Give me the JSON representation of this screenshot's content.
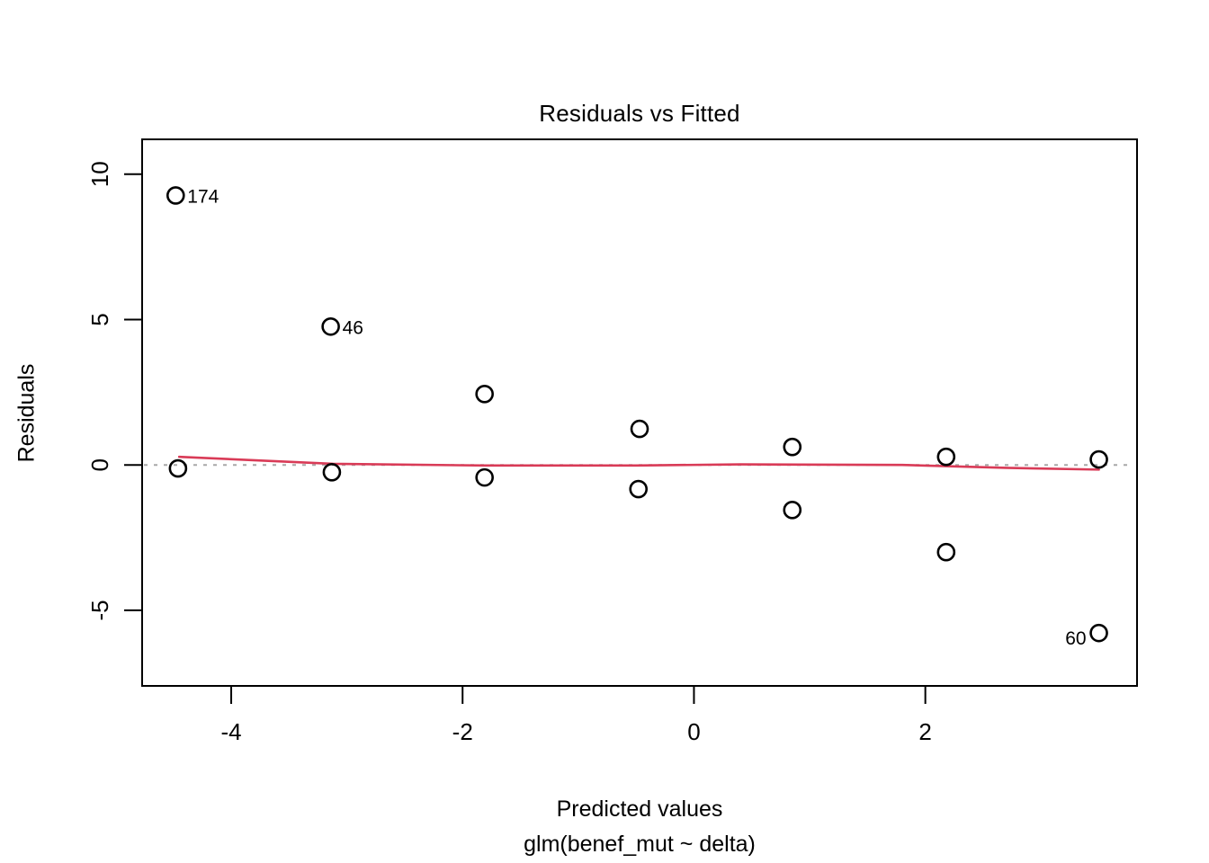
{
  "figure": {
    "title": "Residuals vs Fitted",
    "xlabel": "Predicted values",
    "model_formula": "glm(benef_mut ~ delta)",
    "ylabel": "Residuals"
  },
  "chart_data": {
    "type": "scatter",
    "title": "Residuals vs Fitted",
    "xlabel": "Predicted values",
    "xlabel_line2": "glm(benef_mut ~ delta)",
    "ylabel": "Residuals",
    "xlim": [
      -4.77,
      3.83
    ],
    "ylim": [
      -7.6,
      11.2
    ],
    "x_ticks": [
      -4,
      -2,
      0,
      2
    ],
    "y_ticks": [
      -5,
      0,
      5,
      10
    ],
    "grid": false,
    "legend": "none",
    "marker": {
      "shape": "open-circle",
      "color": "#000000",
      "radius": 9
    },
    "zero_line": {
      "y": 0,
      "style": "dotted",
      "color": "#a8a8a8"
    },
    "points": [
      {
        "x": -4.48,
        "y": 9.27,
        "label": "174",
        "label_side": "right"
      },
      {
        "x": -4.46,
        "y": -0.12
      },
      {
        "x": -3.14,
        "y": 4.76,
        "label": "46",
        "label_side": "right"
      },
      {
        "x": -3.13,
        "y": -0.25
      },
      {
        "x": -1.81,
        "y": 2.44
      },
      {
        "x": -1.81,
        "y": -0.43
      },
      {
        "x": -0.47,
        "y": 1.24
      },
      {
        "x": -0.48,
        "y": -0.83
      },
      {
        "x": 0.85,
        "y": 0.62
      },
      {
        "x": 0.85,
        "y": -1.55
      },
      {
        "x": 2.18,
        "y": 0.28
      },
      {
        "x": 2.18,
        "y": -3.0
      },
      {
        "x": 3.5,
        "y": 0.19
      },
      {
        "x": 3.5,
        "y": -5.78,
        "label": "60",
        "label_side": "left"
      }
    ],
    "smoother": {
      "name": "loess-fit",
      "color": "#d93b57",
      "x": [
        -4.45,
        -3.12,
        -1.8,
        -0.5,
        0.4,
        1.8,
        2.7,
        3.5
      ],
      "y": [
        0.28,
        0.04,
        -0.02,
        -0.02,
        0.02,
        0.0,
        -0.1,
        -0.16
      ]
    }
  }
}
